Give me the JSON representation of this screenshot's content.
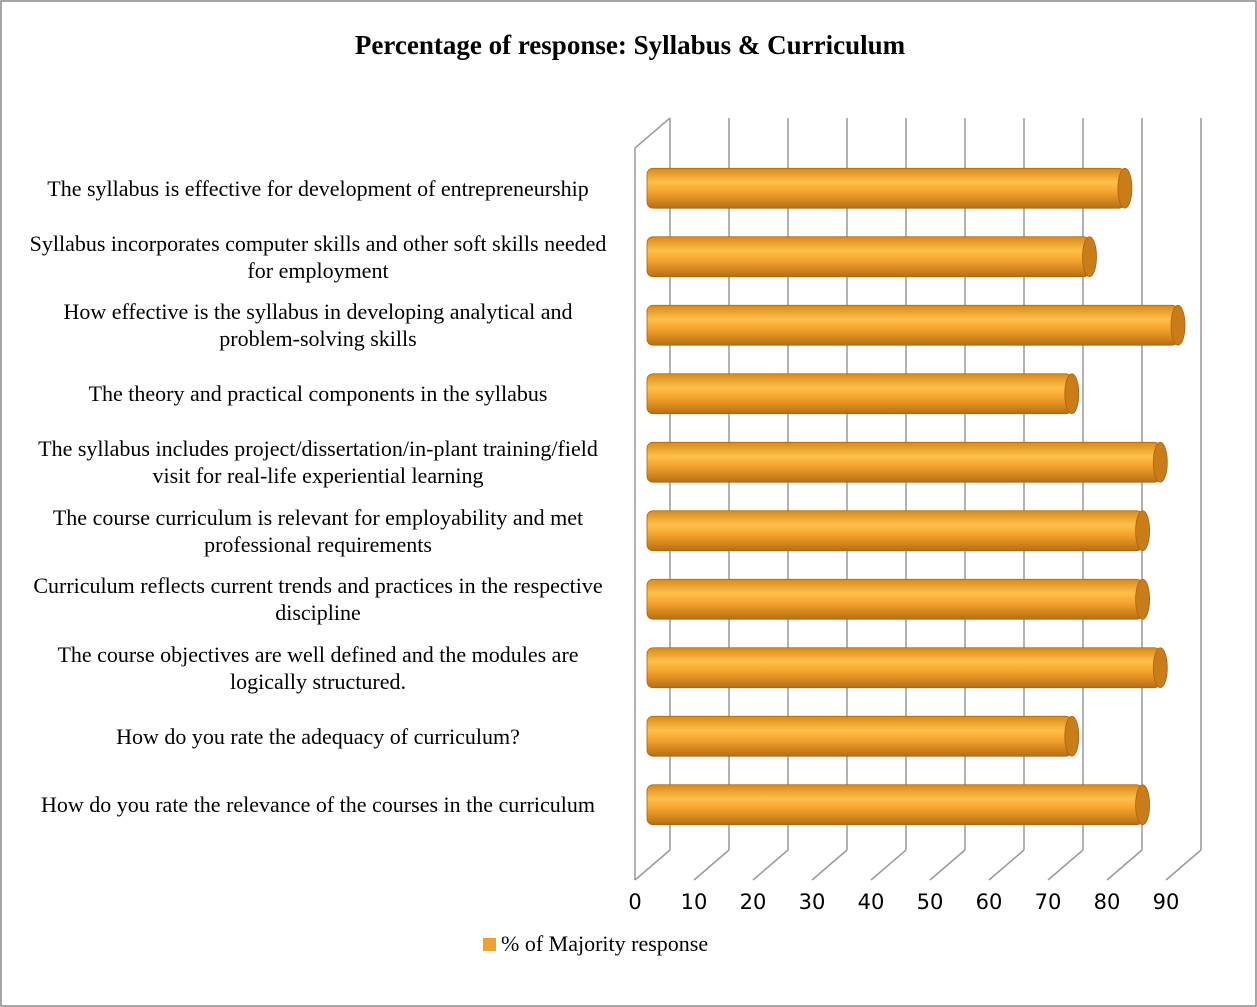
{
  "chart_data": {
    "type": "bar",
    "orientation": "horizontal",
    "title": "Percentage of response: Syllabus & Curriculum",
    "categories": [
      "The syllabus is effective for development of entrepreneurship",
      "Syllabus incorporates computer skills and other soft skills needed for employment",
      "How effective is the syllabus in developing analytical and problem-solving skills",
      "The theory and practical components in the syllabus",
      "The syllabus includes project/dissertation/in-plant training/field visit for real-life experiential learning",
      "The course curriculum is relevant for employability and met professional requirements",
      "Curriculum reflects current trends and practices in the respective discipline",
      "The course objectives are well defined and the modules are logically structured.",
      "How do you rate the adequacy of curriculum?",
      "How do you rate the relevance of the courses in the curriculum"
    ],
    "series": [
      {
        "name": "% of Majority response",
        "color": "#f0a030",
        "values": [
          81,
          75,
          90,
          72,
          87,
          84,
          84,
          87,
          72,
          84
        ]
      }
    ],
    "xlim": [
      0,
      90
    ],
    "xticks": [
      0,
      10,
      20,
      30,
      40,
      50,
      60,
      70,
      80,
      90
    ],
    "grid": true,
    "legend": "bottom"
  }
}
